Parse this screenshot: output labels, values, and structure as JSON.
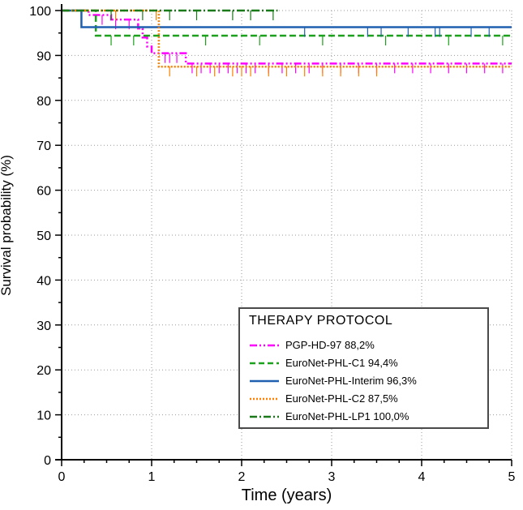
{
  "chart_data": {
    "type": "line",
    "step": true,
    "xlabel": "Time (years)",
    "ylabel": "Survival probability (%)",
    "xlim": [
      0,
      5
    ],
    "ylim": [
      0,
      100
    ],
    "xticks": [
      "0",
      "1",
      "2",
      "3",
      "4",
      "5"
    ],
    "yticks": [
      "0",
      "10",
      "20",
      "30",
      "40",
      "50",
      "60",
      "70",
      "80",
      "90",
      "100"
    ],
    "grid": true,
    "legend": {
      "title": "THERAPY  PROTOCOL",
      "placement": "bottom-right"
    },
    "series": [
      {
        "name": "PGP-HD-97 88,2%",
        "color": "#ff00ff",
        "dash": "dash-dot-dot",
        "steps": [
          [
            0,
            100
          ],
          [
            0.3,
            99
          ],
          [
            0.55,
            98
          ],
          [
            0.85,
            96
          ],
          [
            0.9,
            94
          ],
          [
            0.95,
            92
          ],
          [
            1.0,
            90.5
          ],
          [
            1.38,
            88.2
          ],
          [
            5,
            88.2
          ]
        ],
        "censor_x": [
          0.45,
          0.6,
          0.75,
          1.15,
          1.2,
          1.28,
          1.45,
          1.55,
          1.65,
          1.75,
          1.85,
          1.95,
          2.05,
          2.15,
          2.3,
          2.45,
          2.6,
          2.75,
          2.9,
          3.1,
          3.3,
          3.5,
          3.7,
          3.9,
          4.1,
          4.3,
          4.5,
          4.7,
          4.9
        ]
      },
      {
        "name": "EuroNet-PHL-C1 94,4%",
        "color": "#1aa31a",
        "dash": "dash",
        "steps": [
          [
            0,
            100
          ],
          [
            0.38,
            94.4
          ],
          [
            5,
            94.4
          ]
        ],
        "censor_x": [
          0.55,
          0.8,
          1.6,
          2.2,
          2.9,
          3.6,
          4.3,
          4.9
        ]
      },
      {
        "name": "EuroNet-PHL-Interim  96,3%",
        "color": "#2060b0",
        "dash": "solid",
        "steps": [
          [
            0,
            100
          ],
          [
            0.22,
            96.3
          ],
          [
            5,
            96.3
          ]
        ],
        "censor_x": [
          2.7,
          3.4,
          3.55,
          3.85,
          4.15,
          4.2,
          4.55,
          4.75
        ]
      },
      {
        "name": "EuroNet-PHL-C2 87,5%",
        "color": "#ff8000",
        "dash": "dot",
        "steps": [
          [
            0,
            100
          ],
          [
            1.08,
            87.5
          ],
          [
            5,
            87.5
          ]
        ],
        "censor_x": [
          0.6,
          1.05,
          1.2,
          1.5,
          1.7,
          1.9,
          2.0,
          2.1,
          2.3,
          2.5,
          2.7,
          2.9,
          3.1,
          3.3,
          3.5
        ]
      },
      {
        "name": "EuroNet-PHL-LP1 100,0%",
        "color": "#1a7a1a",
        "dash": "dash-dot",
        "steps": [
          [
            0,
            100
          ],
          [
            2.4,
            100
          ]
        ],
        "censor_x": [
          0.55,
          0.9,
          1.2,
          1.5,
          1.9,
          2.1,
          2.35
        ]
      }
    ]
  }
}
